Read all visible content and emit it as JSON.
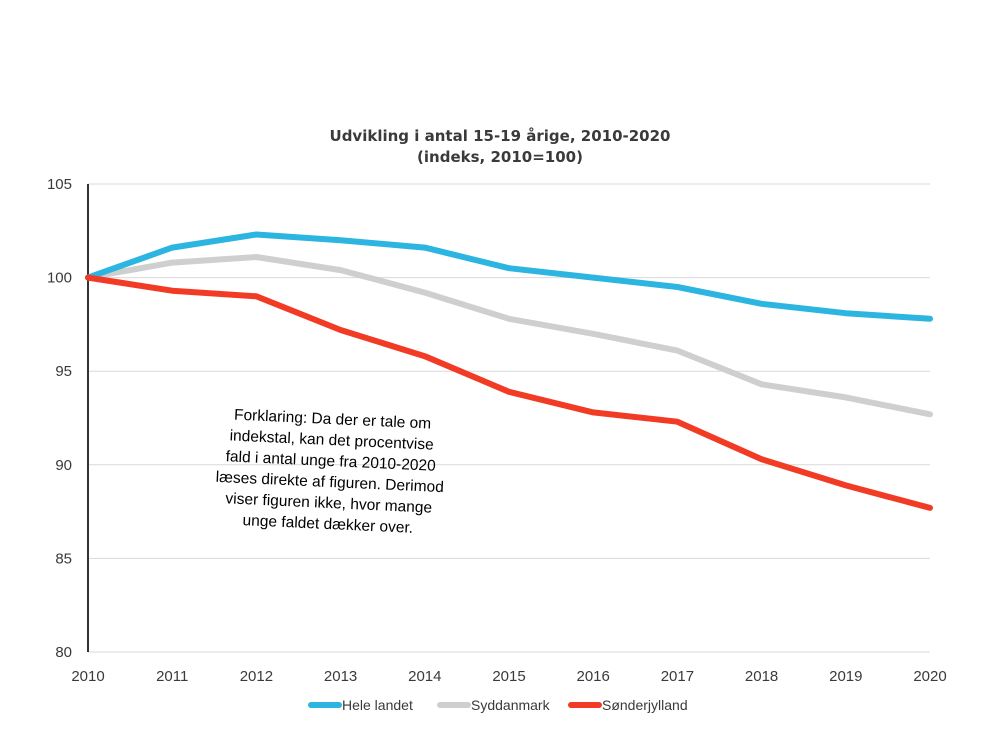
{
  "chart_data": {
    "type": "line",
    "title": "Udvikling i antal 15-19 årige, 2010-2020",
    "subtitle": "(indeks, 2010=100)",
    "xlabel": "",
    "ylabel": "",
    "x": [
      "2010",
      "2011",
      "2012",
      "2013",
      "2014",
      "2015",
      "2016",
      "2017",
      "2018",
      "2019",
      "2020"
    ],
    "ylim": [
      80,
      105
    ],
    "yticks": [
      "105",
      "100",
      "95",
      "90",
      "85",
      "80"
    ],
    "grid": true,
    "legend_position": "bottom",
    "series": [
      {
        "name": "Hele landet",
        "color": "#2cb5e0",
        "values": [
          100,
          101.6,
          102.3,
          102.0,
          101.6,
          100.5,
          100.0,
          99.5,
          98.6,
          98.1,
          97.8
        ]
      },
      {
        "name": "Syddanmark",
        "color": "#cfcfcf",
        "values": [
          100,
          100.8,
          101.1,
          100.4,
          99.2,
          97.8,
          97.0,
          96.1,
          94.3,
          93.6,
          92.7
        ]
      },
      {
        "name": "Sønderjylland",
        "color": "#f23b25",
        "values": [
          100,
          99.3,
          99.0,
          97.2,
          95.8,
          93.9,
          92.8,
          92.3,
          90.3,
          88.9,
          87.7
        ]
      }
    ],
    "annotation": [
      "Forklaring: Da der er tale om",
      "indekstal, kan det procentvise",
      "fald i antal unge fra 2010-2020",
      "læses direkte af figuren. Derimod",
      "viser figuren ikke, hvor mange",
      "unge faldet dækker over."
    ]
  }
}
